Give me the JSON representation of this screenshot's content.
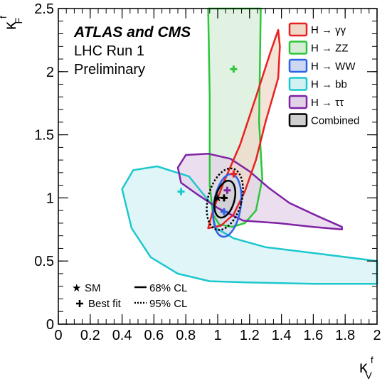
{
  "chart_data": {
    "type": "contour",
    "header": {
      "experiments": "ATLAS and CMS",
      "line2": "LHC Run 1",
      "line3": "Preliminary"
    },
    "xlabel": {
      "symbol": "κ",
      "sup": "f",
      "sub": "V"
    },
    "ylabel": {
      "symbol": "κ",
      "sup": "f",
      "sub": "F"
    },
    "xlim": [
      0,
      2
    ],
    "ylim": [
      0,
      2.5
    ],
    "xticks": [
      "0",
      "0.2",
      "0.4",
      "0.6",
      "0.8",
      "1",
      "1.2",
      "1.4",
      "1.6",
      "1.8",
      "2"
    ],
    "yticks": [
      "0",
      "0.5",
      "1",
      "1.5",
      "2",
      "2.5"
    ],
    "legend_position": "top-right",
    "legend": [
      {
        "key": "gg",
        "label": "H → γγ",
        "color": "#e8201f",
        "fill": "#f0d8c8"
      },
      {
        "key": "zz",
        "label": "H → ZZ",
        "color": "#2bc63a",
        "fill": "#d6ecd6"
      },
      {
        "key": "ww",
        "label": "H → WW",
        "color": "#2c63e6",
        "fill": "#cdd7f2"
      },
      {
        "key": "bb",
        "label": "H → bb",
        "color": "#1cc8cd",
        "fill": "#d2f1f3"
      },
      {
        "key": "tt",
        "label": "H → ττ",
        "color": "#7e22a6",
        "fill": "#e2d2e8"
      },
      {
        "key": "comb",
        "label": "Combined",
        "color": "#000000",
        "fill": "#cfcfcf"
      }
    ],
    "sub_legend": {
      "position": "bottom-left",
      "sm": "SM",
      "best_fit": "Best fit",
      "cl68": "68% CL",
      "cl95": "95% CL"
    },
    "sm_point": [
      1.0,
      1.0
    ],
    "best_fits": [
      {
        "key": "gg",
        "x": 1.1,
        "y": 1.19
      },
      {
        "key": "zz",
        "x": 1.1,
        "y": 2.02
      },
      {
        "key": "ww",
        "x": 1.04,
        "y": 0.89
      },
      {
        "key": "bb",
        "x": 0.77,
        "y": 1.05
      },
      {
        "key": "tt",
        "x": 1.06,
        "y": 1.06
      },
      {
        "key": "comb",
        "x": 1.04,
        "y": 1.0
      }
    ],
    "contours": [
      {
        "key": "bb",
        "cl": "68%",
        "points": [
          [
            0.98,
            0.92
          ],
          [
            0.82,
            1.17
          ],
          [
            0.62,
            1.25
          ],
          [
            0.47,
            1.22
          ],
          [
            0.4,
            1.07
          ],
          [
            0.46,
            0.76
          ],
          [
            0.58,
            0.53
          ],
          [
            0.75,
            0.4
          ],
          [
            0.95,
            0.34
          ],
          [
            1.2,
            0.33
          ],
          [
            1.6,
            0.32
          ],
          [
            2.0,
            0.32
          ],
          [
            2.0,
            0.5
          ],
          [
            1.62,
            0.56
          ],
          [
            1.3,
            0.61
          ],
          [
            1.1,
            0.68
          ],
          [
            0.99,
            0.76
          ],
          [
            0.97,
            0.85
          ]
        ]
      },
      {
        "key": "zz",
        "cl": "68%",
        "points": [
          [
            0.97,
            0.87
          ],
          [
            0.95,
            1.1
          ],
          [
            0.95,
            1.8
          ],
          [
            0.94,
            2.5
          ],
          [
            1.27,
            2.5
          ],
          [
            1.26,
            1.6
          ],
          [
            1.28,
            1.15
          ],
          [
            1.24,
            0.9
          ],
          [
            1.17,
            0.8
          ],
          [
            1.09,
            0.77
          ],
          [
            1.01,
            0.79
          ]
        ]
      },
      {
        "key": "tt",
        "cl": "68%",
        "points": [
          [
            0.77,
            1.12
          ],
          [
            0.87,
            1.03
          ],
          [
            1.0,
            0.92
          ],
          [
            1.16,
            0.82
          ],
          [
            1.38,
            0.8
          ],
          [
            1.6,
            0.77
          ],
          [
            1.78,
            0.75
          ],
          [
            1.78,
            0.77
          ],
          [
            1.62,
            0.86
          ],
          [
            1.45,
            0.96
          ],
          [
            1.32,
            1.08
          ],
          [
            1.2,
            1.21
          ],
          [
            1.08,
            1.31
          ],
          [
            0.94,
            1.35
          ],
          [
            0.8,
            1.34
          ],
          [
            0.75,
            1.24
          ]
        ]
      },
      {
        "key": "gg",
        "cl": "68%",
        "points": [
          [
            0.94,
            0.76
          ],
          [
            0.97,
            0.9
          ],
          [
            1.04,
            1.13
          ],
          [
            1.14,
            1.42
          ],
          [
            1.24,
            1.8
          ],
          [
            1.33,
            2.15
          ],
          [
            1.38,
            2.33
          ],
          [
            1.39,
            2.2
          ],
          [
            1.38,
            1.95
          ],
          [
            1.3,
            1.6
          ],
          [
            1.24,
            1.3
          ],
          [
            1.17,
            1.05
          ],
          [
            1.1,
            0.87
          ],
          [
            1.02,
            0.78
          ]
        ]
      },
      {
        "key": "ww",
        "cl": "68%",
        "cx": 1.06,
        "cy": 0.94,
        "rx": 0.085,
        "ry": 0.25,
        "angle": 8
      },
      {
        "key": "comb",
        "cl": "95%",
        "cx": 1.045,
        "cy": 0.99,
        "rx": 0.105,
        "ry": 0.25,
        "angle": 15
      },
      {
        "key": "comb",
        "cl": "68%",
        "cx": 1.045,
        "cy": 0.99,
        "rx": 0.06,
        "ry": 0.15,
        "angle": 15
      }
    ]
  }
}
